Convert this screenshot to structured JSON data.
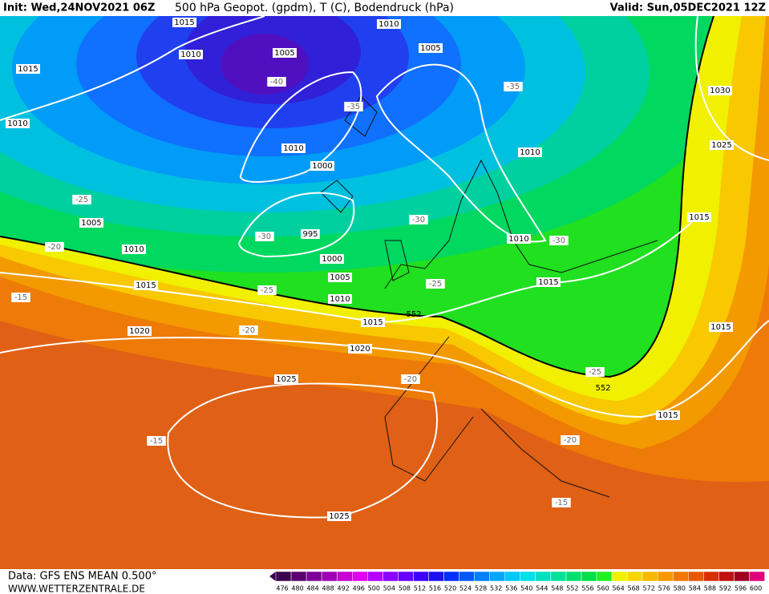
{
  "header": {
    "init": "Init: Wed,24NOV2021 06Z",
    "title": "500 hPa Geopot. (gpdm), T (C), Bodendruck (hPa)",
    "valid": "Valid: Sun,05DEC2021 12Z"
  },
  "isobar_labels": [
    "1015",
    "1010",
    "1010",
    "1005",
    "1005",
    "1015",
    "1030",
    "1010",
    "1010",
    "1010",
    "1025",
    "1000",
    "1005",
    "1015",
    "995",
    "1010",
    "1010",
    "1000",
    "1005",
    "1015",
    "1015",
    "1010",
    "1015",
    "1015",
    "1020",
    "1020",
    "1025",
    "1015",
    "1025"
  ],
  "temperature_labels": [
    "-40",
    "-35",
    "-35",
    "-25",
    "-30",
    "-30",
    "-30",
    "-20",
    "-25",
    "-25",
    "-15",
    "-20",
    "-20",
    "-25",
    "-15",
    "-20",
    "-15"
  ],
  "geopotential_labels": [
    "552",
    "552"
  ],
  "legend": {
    "levels": [
      476,
      480,
      484,
      488,
      492,
      496,
      500,
      504,
      508,
      512,
      516,
      520,
      524,
      528,
      532,
      536,
      540,
      544,
      548,
      552,
      556,
      560,
      564,
      568,
      572,
      576,
      580,
      584,
      588,
      592,
      596,
      600
    ],
    "colors": [
      "#3c0050",
      "#5a006e",
      "#7d0096",
      "#a000b4",
      "#c800d2",
      "#e100f0",
      "#b400ff",
      "#8c00ff",
      "#6400ff",
      "#3c00ff",
      "#1e10f0",
      "#0030ff",
      "#0058ff",
      "#0080ff",
      "#00a8ff",
      "#00c8f8",
      "#00e0e8",
      "#00e0c0",
      "#00e098",
      "#00e070",
      "#00e048",
      "#20f020",
      "#f0f000",
      "#f8d800",
      "#f8b800",
      "#f89800",
      "#f07800",
      "#e85800",
      "#d83000",
      "#c01010",
      "#a00020",
      "#e0007a"
    ]
  },
  "footer": {
    "source": "Data: GFS ENS MEAN 0.500°",
    "website": "WWW.WETTERZENTRALE.DE"
  }
}
